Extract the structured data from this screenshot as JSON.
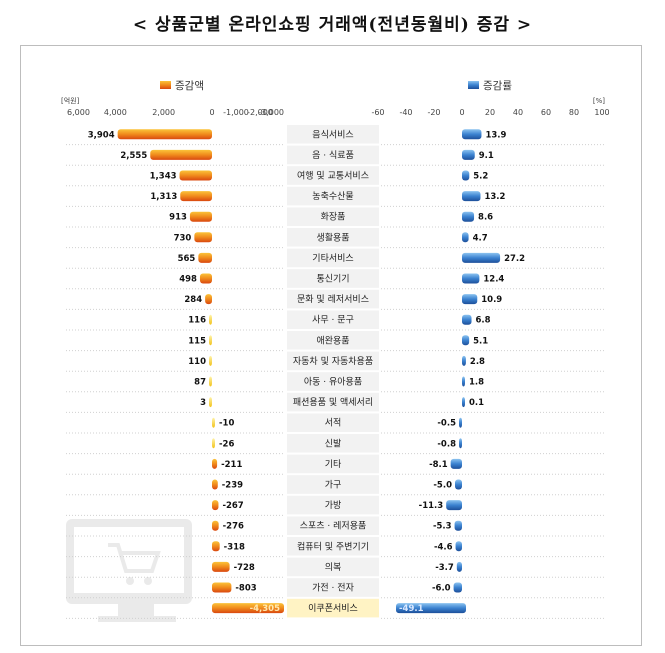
{
  "page": {
    "title": "< 상품군별 온라인쇼핑 거래액(전년동월비) 증감 >"
  },
  "chart_data": {
    "type": "bar",
    "title": "< 상품군별 온라인쇼핑 거래액(전년동월비) 증감 >",
    "categories": [
      "음식서비스",
      "음 · 식료품",
      "여행 및 교통서비스",
      "농축수산물",
      "화장품",
      "생활용품",
      "기타서비스",
      "통신기기",
      "문화 및 레저서비스",
      "사무 · 문구",
      "애완용품",
      "자동차 및 자동차용품",
      "아동 · 유아용품",
      "패션용품 및 액세서리",
      "서적",
      "신발",
      "기타",
      "가구",
      "가방",
      "스포츠 · 레저용품",
      "컴퓨터 및 주변기기",
      "의복",
      "가전 · 전자",
      "이쿠폰서비스"
    ],
    "series": [
      {
        "name": "증감액",
        "unit": "[억원]",
        "color": "#e8761a",
        "values": [
          3904,
          2555,
          1343,
          1313,
          913,
          730,
          565,
          498,
          284,
          116,
          115,
          110,
          87,
          3,
          -10,
          -26,
          -211,
          -239,
          -267,
          -276,
          -318,
          -728,
          -803,
          -4305
        ],
        "labels": [
          "3,904",
          "2,555",
          "1,343",
          "1,313",
          "913",
          "730",
          "565",
          "498",
          "284",
          "116",
          "115",
          "110",
          "87",
          "3",
          "-10",
          "-26",
          "-211",
          "-239",
          "-267",
          "-276",
          "-318",
          "-728",
          "-803",
          "-4,305"
        ],
        "axis_ticks": [
          "6,000",
          "4,000",
          "2,000",
          "0",
          "-1,000",
          "-2,000",
          "-3,000"
        ]
      },
      {
        "name": "증감률",
        "unit": "[%]",
        "color": "#2f6fb8",
        "values": [
          13.9,
          9.1,
          5.2,
          13.2,
          8.6,
          4.7,
          27.2,
          12.4,
          10.9,
          6.8,
          5.1,
          2.8,
          1.8,
          0.1,
          -0.5,
          -0.8,
          -8.1,
          -5.0,
          -11.3,
          -5.3,
          -4.6,
          -3.7,
          -6.0,
          -49.1
        ],
        "labels": [
          "13.9",
          "9.1",
          "5.2",
          "13.2",
          "8.6",
          "4.7",
          "27.2",
          "12.4",
          "10.9",
          "6.8",
          "5.1",
          "2.8",
          "1.8",
          "0.1",
          "-0.5",
          "-0.8",
          "-8.1",
          "-5.0",
          "-11.3",
          "-5.3",
          "-4.6",
          "-3.7",
          "-6.0",
          "-49.1"
        ],
        "axis_ticks": [
          "-60",
          "-40",
          "-20",
          "0",
          "20",
          "40",
          "60",
          "80",
          "100"
        ]
      }
    ]
  }
}
